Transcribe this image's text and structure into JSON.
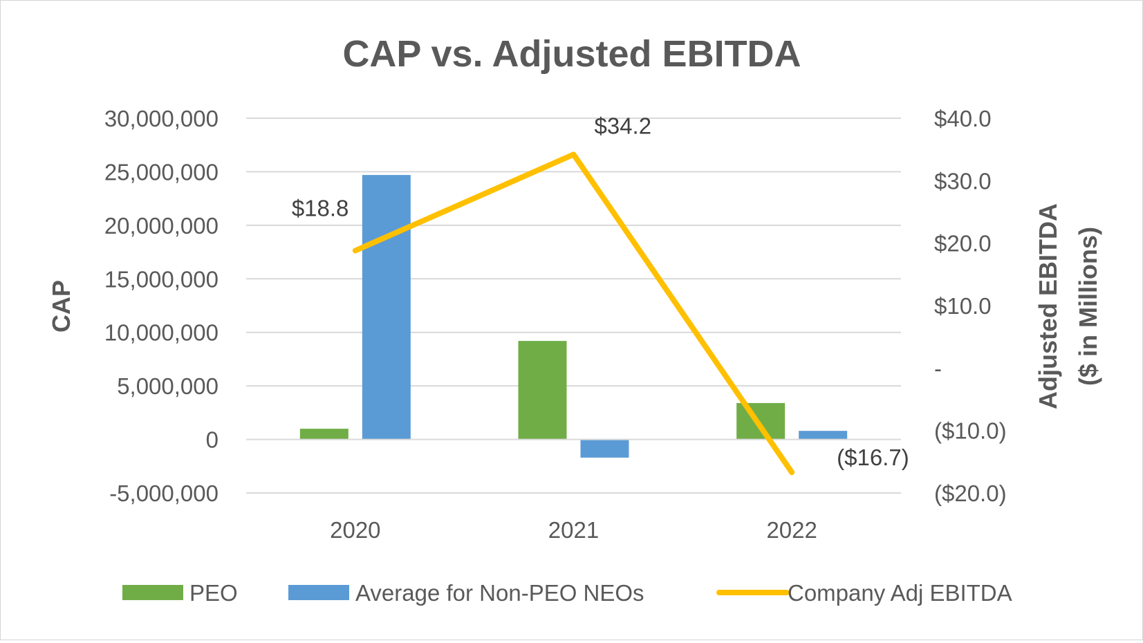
{
  "chart_data": {
    "type": "bar",
    "title": "CAP vs. Adjusted EBITDA",
    "categories": [
      "2020",
      "2021",
      "2022"
    ],
    "series": [
      {
        "name": "PEO",
        "type": "bar",
        "axis": "left",
        "color": "#70ad47",
        "values": [
          1000000,
          9200000,
          3400000
        ]
      },
      {
        "name": "Average for Non-PEO NEOs",
        "type": "bar",
        "axis": "left",
        "color": "#5b9bd5",
        "values": [
          24700000,
          -1700000,
          800000
        ]
      },
      {
        "name": "Company Adj EBITDA",
        "type": "line",
        "axis": "right",
        "color": "#ffc000",
        "values": [
          18.8,
          34.2,
          -16.7
        ],
        "data_labels": [
          "$18.8",
          "$34.2",
          "($16.7)"
        ]
      }
    ],
    "left_axis": {
      "label": "CAP",
      "ylim": [
        -5000000,
        30000000
      ],
      "ticks": [
        30000000,
        25000000,
        20000000,
        15000000,
        10000000,
        5000000,
        0,
        -5000000
      ],
      "tick_labels": [
        "30,000,000",
        "25,000,000",
        "20,000,000",
        "15,000,000",
        "10,000,000",
        "5,000,000",
        "0",
        "-5,000,000"
      ]
    },
    "right_axis": {
      "label_line1": "Adjusted EBITDA",
      "label_line2": "($ in Millions)",
      "ylim": [
        -20,
        40
      ],
      "ticks": [
        40,
        30,
        20,
        10,
        0,
        -10,
        -20
      ],
      "tick_labels": [
        "$40.0",
        "$30.0",
        "$20.0",
        "$10.0",
        "-",
        "($10.0)",
        "($20.0)"
      ]
    },
    "grid": true,
    "legend_position": "bottom"
  }
}
